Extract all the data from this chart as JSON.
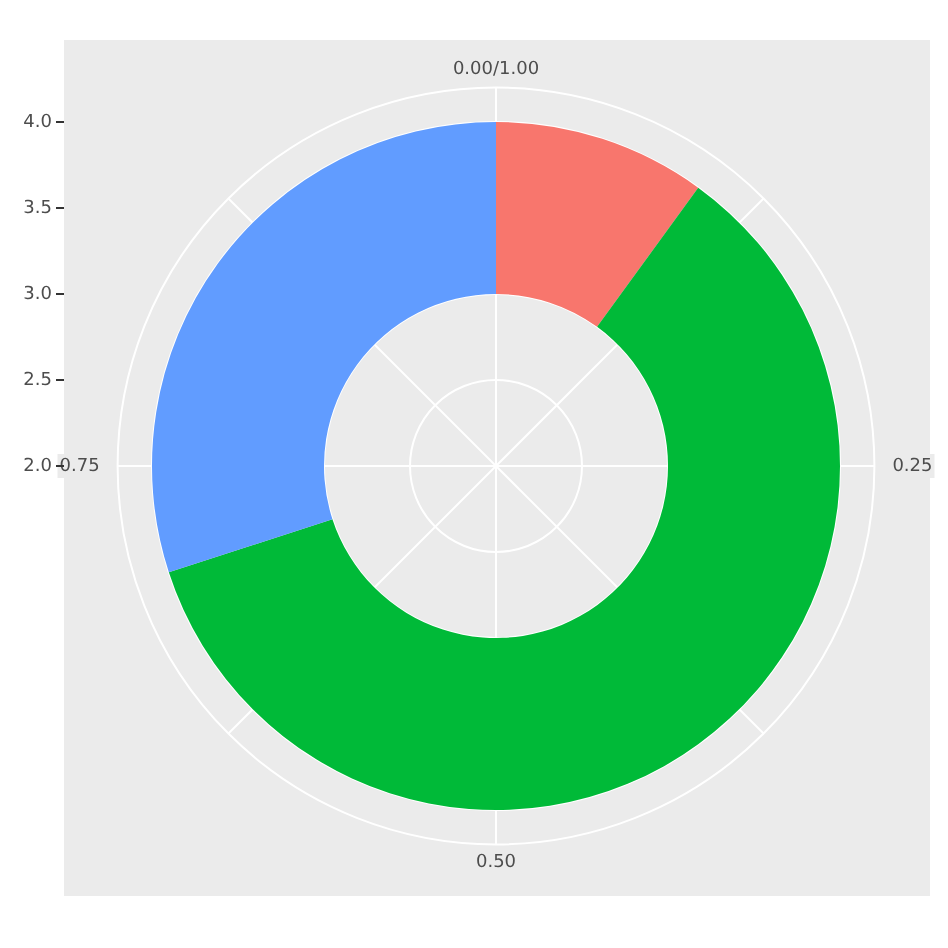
{
  "chart_data": {
    "type": "donut",
    "categories": [
      null,
      null,
      null
    ],
    "values": [
      10,
      60,
      30
    ],
    "colors": [
      "#f8766d",
      "#00ba38",
      "#619cff"
    ],
    "annotations": [
      "0.00/1.00",
      "0.25",
      "0.50",
      "0.75",
      "2.0",
      "2.5",
      "3.0",
      "3.5",
      "4.0"
    ],
    "grid": true,
    "legend": false
  }
}
